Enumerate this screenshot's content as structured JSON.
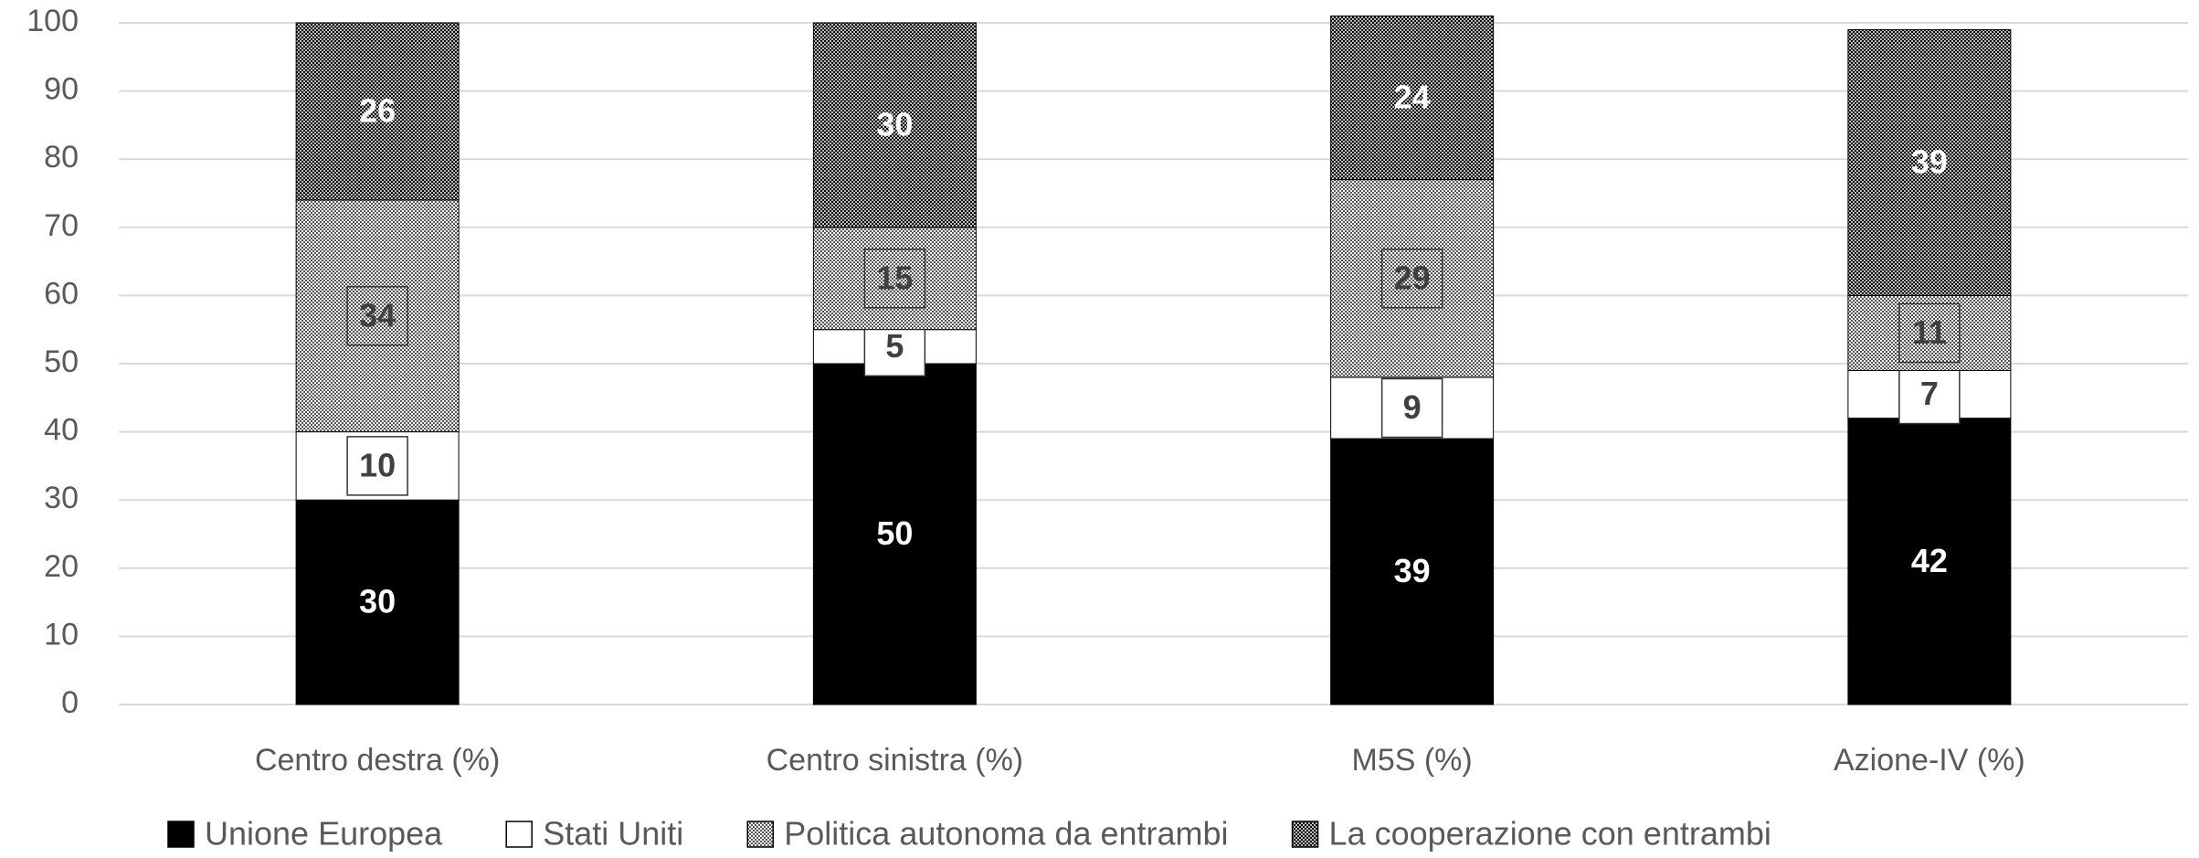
{
  "chart_data": {
    "type": "stacked_bar",
    "categories": [
      "Centro destra (%)",
      "Centro sinistra (%)",
      "M5S (%)",
      "Azione-IV (%)"
    ],
    "series": [
      {
        "name": "Unione Europea",
        "color": "#000000",
        "values": [
          30,
          50,
          39,
          42
        ]
      },
      {
        "name": "Stati Uniti",
        "color": "#ffffff",
        "values": [
          10,
          5,
          9,
          7
        ]
      },
      {
        "name": "Politica autonoma da entrambi",
        "color": "#a6a6a6",
        "values": [
          34,
          15,
          29,
          11
        ]
      },
      {
        "name": "La cooperazione con entrambi",
        "color": "#262626",
        "values": [
          26,
          30,
          24,
          39
        ]
      }
    ],
    "ylim": [
      0,
      100
    ],
    "yticks": [
      0,
      10,
      20,
      30,
      40,
      50,
      60,
      70,
      80,
      90,
      100
    ],
    "grid": true,
    "legend": "bottom"
  }
}
